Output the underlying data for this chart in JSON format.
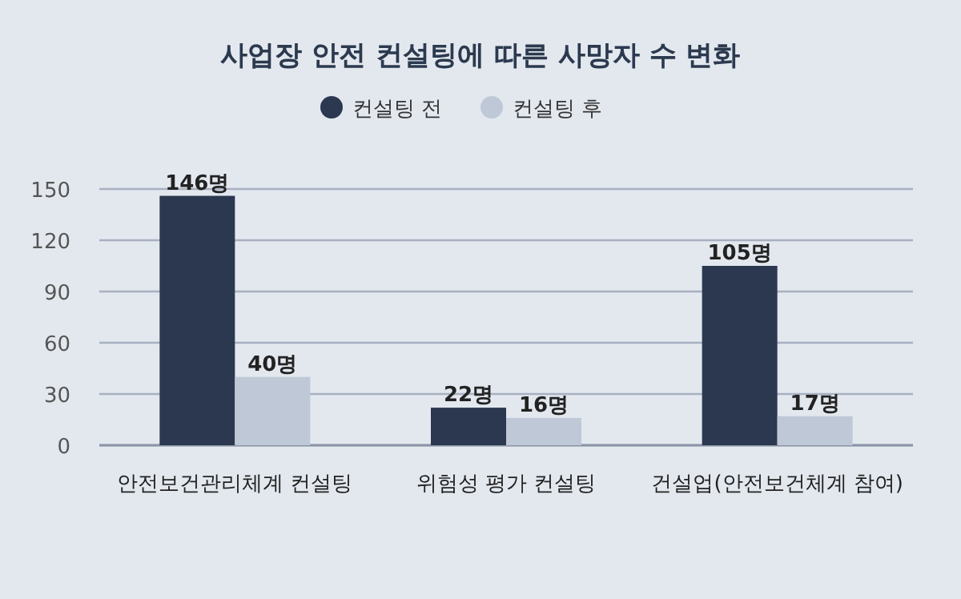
{
  "chart_data": {
    "type": "bar",
    "title": "사업장 안전 컨설팅에 따른 사망자 수 변화",
    "categories": [
      "안전보건관리체계 컨설팅",
      "위험성 평가 컨설팅",
      "건설업(안전보건체계 참여)"
    ],
    "series": [
      {
        "name": "컨설팅 전",
        "color": "#2b3850",
        "values": [
          146,
          22,
          105
        ],
        "value_labels": [
          "146명",
          "22명",
          "105명"
        ]
      },
      {
        "name": "컨설팅 후",
        "color": "#bfc8d6",
        "values": [
          40,
          16,
          17
        ],
        "value_labels": [
          "40명",
          "16명",
          "17명"
        ]
      }
    ],
    "ylim": [
      0,
      150
    ],
    "yticks": [
      0,
      30,
      60,
      90,
      120,
      150
    ],
    "grid": "y",
    "legend": "top"
  }
}
